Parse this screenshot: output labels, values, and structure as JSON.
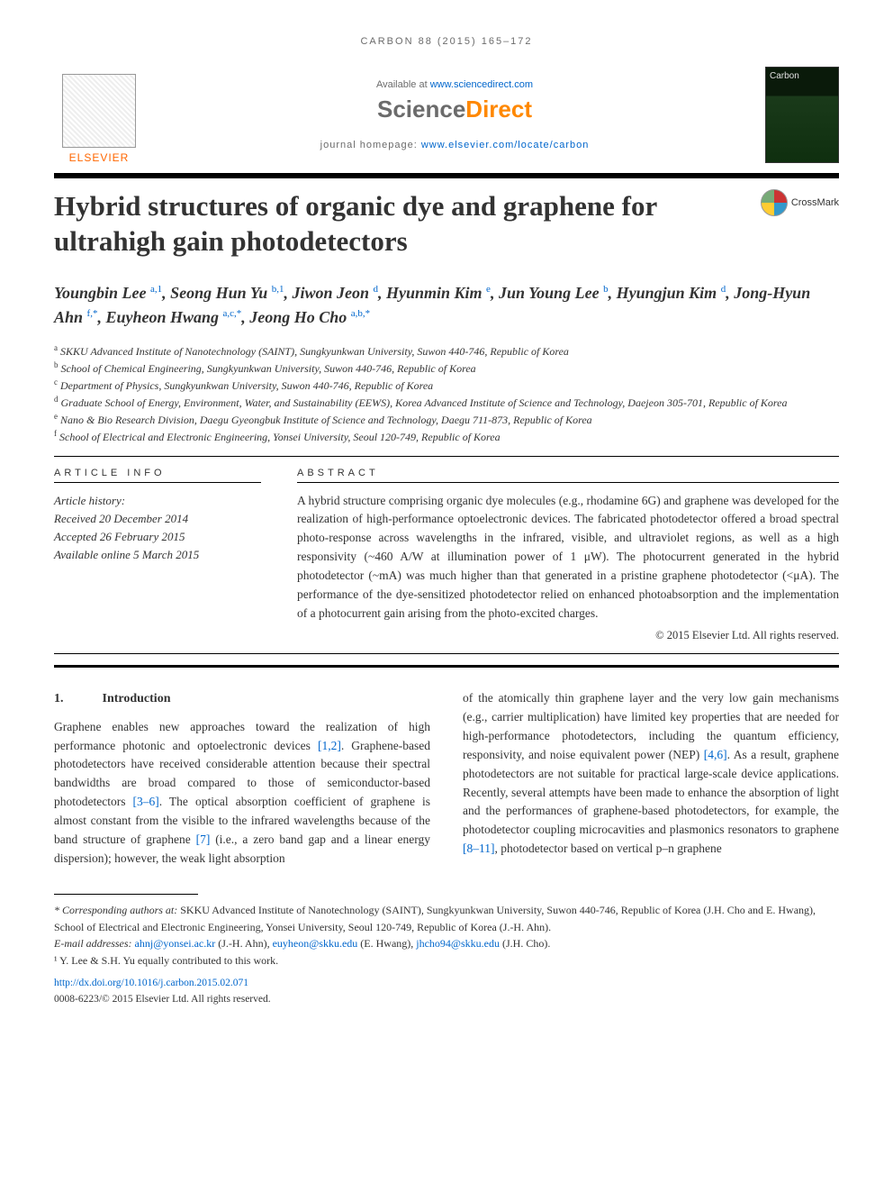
{
  "running_head": {
    "prefix": "CARBON 88 (2015) 165–172",
    "journal_short": "CARBON",
    "volume": "88",
    "year": "2015",
    "pages": "165–172"
  },
  "masthead": {
    "elsevier": "ELSEVIER",
    "available_prefix": "Available at ",
    "available_link": "www.sciencedirect.com",
    "sd_science": "Science",
    "sd_direct": "Direct",
    "homepage_prefix": "journal homepage: ",
    "homepage_link": "www.elsevier.com/locate/carbon",
    "cover_title": "Carbon"
  },
  "crossmark": "CrossMark",
  "title": "Hybrid structures of organic dye and graphene for ultrahigh gain photodetectors",
  "authors_html": "Youngbin Lee <sup>a,1</sup>, Seong Hun Yu <sup>b,1</sup>, Jiwon Jeon <sup>d</sup>, Hyunmin Kim <sup>e</sup>, Jun Young Lee <sup>b</sup>, Hyungjun Kim <sup>d</sup>, Jong-Hyun Ahn <sup>f,*</sup>, Euyheon Hwang <sup>a,c,*</sup>, Jeong Ho Cho <sup>a,b,*</sup>",
  "affiliations": [
    {
      "key": "a",
      "text": "SKKU Advanced Institute of Nanotechnology (SAINT), Sungkyunkwan University, Suwon 440-746, Republic of Korea"
    },
    {
      "key": "b",
      "text": "School of Chemical Engineering, Sungkyunkwan University, Suwon 440-746, Republic of Korea"
    },
    {
      "key": "c",
      "text": "Department of Physics, Sungkyunkwan University, Suwon 440-746, Republic of Korea"
    },
    {
      "key": "d",
      "text": "Graduate School of Energy, Environment, Water, and Sustainability (EEWS), Korea Advanced Institute of Science and Technology, Daejeon 305-701, Republic of Korea"
    },
    {
      "key": "e",
      "text": "Nano & Bio Research Division, Daegu Gyeongbuk Institute of Science and Technology, Daegu 711-873, Republic of Korea"
    },
    {
      "key": "f",
      "text": "School of Electrical and Electronic Engineering, Yonsei University, Seoul 120-749, Republic of Korea"
    }
  ],
  "labels": {
    "article_info": "ARTICLE INFO",
    "abstract": "ABSTRACT"
  },
  "history": {
    "header": "Article history:",
    "received": "Received 20 December 2014",
    "accepted": "Accepted 26 February 2015",
    "online": "Available online 5 March 2015"
  },
  "abstract": "A hybrid structure comprising organic dye molecules (e.g., rhodamine 6G) and graphene was developed for the realization of high-performance optoelectronic devices. The fabricated photodetector offered a broad spectral photo-response across wavelengths in the infrared, visible, and ultraviolet regions, as well as a high responsivity (~460 A/W at illumination power of 1 μW). The photocurrent generated in the hybrid photodetector (~mA) was much higher than that generated in a pristine graphene photodetector (<μA). The performance of the dye-sensitized photodetector relied on enhanced photoabsorption and the implementation of a photocurrent gain arising from the photo-excited charges.",
  "abstract_copyright": "© 2015 Elsevier Ltd. All rights reserved.",
  "section1": {
    "num": "1.",
    "title": "Introduction"
  },
  "body_left": "Graphene enables new approaches toward the realization of high performance photonic and optoelectronic devices [1,2]. Graphene-based photodetectors have received considerable attention because their spectral bandwidths are broad compared to those of semiconductor-based photodetectors [3–6]. The optical absorption coefficient of graphene is almost constant from the visible to the infrared wavelengths because of the band structure of graphene [7] (i.e., a zero band gap and a linear energy dispersion); however, the weak light absorption",
  "body_right": "of the atomically thin graphene layer and the very low gain mechanisms (e.g., carrier multiplication) have limited key properties that are needed for high-performance photodetectors, including the quantum efficiency, responsivity, and noise equivalent power (NEP) [4,6]. As a result, graphene photodetectors are not suitable for practical large-scale device applications. Recently, several attempts have been made to enhance the absorption of light and the performances of graphene-based photodetectors, for example, the photodetector coupling microcavities and plasmonics resonators to graphene [8–11], photodetector based on vertical p–n graphene",
  "refs_left": [
    "[1,2]",
    "[3–6]",
    "[7]"
  ],
  "refs_right": [
    "[4,6]",
    "[8–11]"
  ],
  "footnotes": {
    "corr_label": "* Corresponding authors at:",
    "corr_text": " SKKU Advanced Institute of Nanotechnology (SAINT), Sungkyunkwan University, Suwon 440-746, Republic of Korea (J.H. Cho and E. Hwang), School of Electrical and Electronic Engineering, Yonsei University, Seoul 120-749, Republic of Korea (J.-H. Ahn).",
    "email_label": "E-mail addresses: ",
    "emails": [
      {
        "addr": "ahnj@yonsei.ac.kr",
        "who": " (J.-H. Ahn), "
      },
      {
        "addr": "euyheon@skku.edu",
        "who": " (E. Hwang), "
      },
      {
        "addr": "jhcho94@skku.edu",
        "who": " (J.H. Cho)."
      }
    ],
    "equal": "¹ Y. Lee & S.H. Yu equally contributed to this work."
  },
  "bottom": {
    "doi": "http://dx.doi.org/10.1016/j.carbon.2015.02.071",
    "issn_line": "0008-6223/© 2015 Elsevier Ltd. All rights reserved."
  },
  "colors": {
    "link": "#0066cc",
    "orange": "#ff8800",
    "text": "#333333",
    "grey": "#6b6b6b"
  },
  "fonts": {
    "body_pt": 13.5,
    "title_pt": 31,
    "authors_pt": 18,
    "affil_pt": 12,
    "footnote_pt": 12
  }
}
